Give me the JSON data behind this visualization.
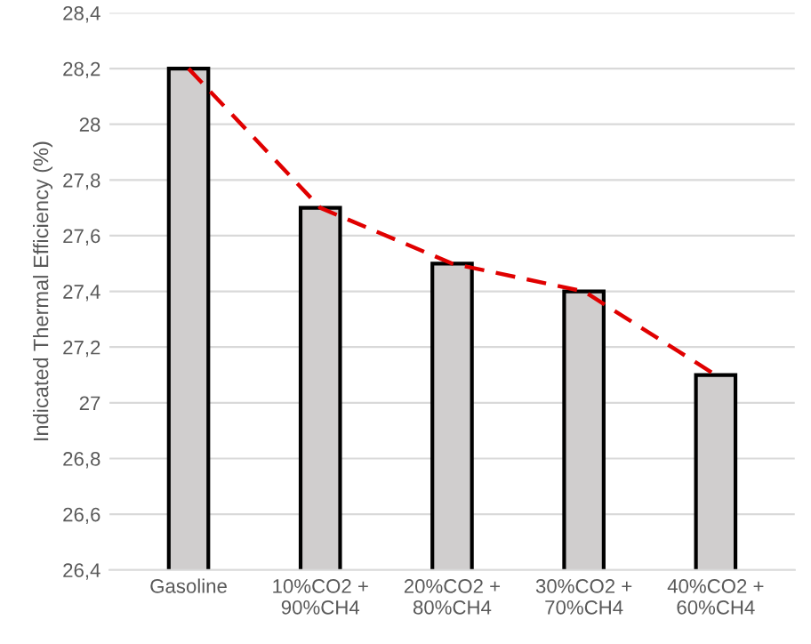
{
  "chart_data": {
    "type": "bar",
    "ylabel": "Indicated Thermal Efficiency (%)",
    "categories": [
      "Gasoline",
      "10%CO2 +\n90%CH4",
      "20%CO2 +\n80%CH4",
      "30%CO2 +\n70%CH4",
      "40%CO2 +\n60%CH4"
    ],
    "series": [
      {
        "color": "#d0cece",
        "values": [
          28.2,
          27.7,
          27.5,
          27.4,
          27.1
        ]
      },
      {
        "type": "line",
        "color": "#e00000",
        "line_style": "dashed",
        "marker": "none",
        "values": [
          28.2,
          27.7,
          27.5,
          27.4,
          27.1
        ]
      }
    ],
    "ylim": [
      26.4,
      28.4
    ],
    "yticks": [
      {
        "value": 26.4,
        "label": "26,4"
      },
      {
        "value": 26.6,
        "label": "26,6"
      },
      {
        "value": 26.8,
        "label": "26,8"
      },
      27,
      {
        "value": 27.2,
        "label": "27,2"
      },
      {
        "value": 27.4,
        "label": "27,4"
      },
      {
        "value": 27.6,
        "label": "27,6"
      },
      {
        "value": 27.8,
        "label": "27,8"
      },
      28,
      {
        "value": 28.2,
        "label": "28,2"
      },
      {
        "value": 28.4,
        "label": "28,4"
      }
    ],
    "grid": "y",
    "legend": false
  }
}
